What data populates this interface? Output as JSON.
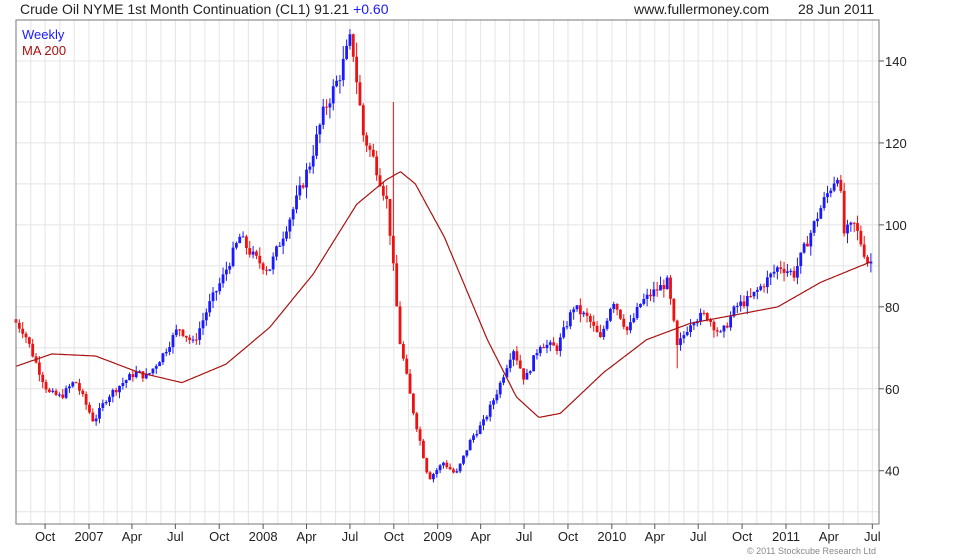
{
  "header": {
    "title": "Crude Oil NYME 1st Month Continuation (CL1)",
    "last": "91.21",
    "change": "+0.60",
    "site": "www.fullermoney.com",
    "date": "28 Jun 2011"
  },
  "legend": {
    "weekly": "Weekly",
    "ma": "MA 200",
    "weekly_color": "#1a1aff",
    "ma_color": "#aa1111"
  },
  "copyright": "© 2011 Stockcube Research Ltd",
  "chart_data": {
    "type": "candlestick",
    "series": [
      {
        "name": "Weekly"
      },
      {
        "name": "MA 200"
      }
    ],
    "colors": {
      "up": "#1a1aff",
      "down": "#ee1111",
      "ma": "#aa1111"
    },
    "x_range": [
      "2006-08-01",
      "2011-07-15"
    ],
    "ylim": [
      27,
      150
    ],
    "y_ticks": [
      40,
      60,
      80,
      100,
      120,
      140
    ],
    "x_ticks": [
      {
        "label": "Oct",
        "date": "2006-10-01"
      },
      {
        "label": "2007",
        "date": "2007-01-01"
      },
      {
        "label": "Apr",
        "date": "2007-04-01"
      },
      {
        "label": "Jul",
        "date": "2007-07-01"
      },
      {
        "label": "Oct",
        "date": "2007-10-01"
      },
      {
        "label": "2008",
        "date": "2008-01-01"
      },
      {
        "label": "Apr",
        "date": "2008-04-01"
      },
      {
        "label": "Jul",
        "date": "2008-07-01"
      },
      {
        "label": "Oct",
        "date": "2008-10-01"
      },
      {
        "label": "2009",
        "date": "2009-01-01"
      },
      {
        "label": "Apr",
        "date": "2009-04-01"
      },
      {
        "label": "Jul",
        "date": "2009-07-01"
      },
      {
        "label": "Oct",
        "date": "2009-10-01"
      },
      {
        "label": "2010",
        "date": "2010-01-01"
      },
      {
        "label": "Apr",
        "date": "2010-04-01"
      },
      {
        "label": "Jul",
        "date": "2010-07-01"
      },
      {
        "label": "Oct",
        "date": "2010-10-01"
      },
      {
        "label": "2011",
        "date": "2011-01-01"
      },
      {
        "label": "Apr",
        "date": "2011-04-01"
      },
      {
        "label": "Jul",
        "date": "2011-07-01"
      }
    ],
    "price_path": [
      [
        "2006-08-01",
        77
      ],
      [
        "2006-08-25",
        74
      ],
      [
        "2006-09-20",
        66
      ],
      [
        "2006-10-15",
        59
      ],
      [
        "2006-11-10",
        58
      ],
      [
        "2006-12-10",
        62
      ],
      [
        "2007-01-18",
        52
      ],
      [
        "2007-02-15",
        58
      ],
      [
        "2007-03-15",
        61
      ],
      [
        "2007-04-15",
        64
      ],
      [
        "2007-05-10",
        63
      ],
      [
        "2007-06-10",
        68
      ],
      [
        "2007-07-15",
        75
      ],
      [
        "2007-08-15",
        71
      ],
      [
        "2007-09-15",
        80
      ],
      [
        "2007-10-15",
        87
      ],
      [
        "2007-11-20",
        97
      ],
      [
        "2007-12-20",
        92
      ],
      [
        "2008-01-20",
        89
      ],
      [
        "2008-02-20",
        98
      ],
      [
        "2008-03-15",
        105
      ],
      [
        "2008-04-15",
        115
      ],
      [
        "2008-05-15",
        128
      ],
      [
        "2008-06-15",
        136
      ],
      [
        "2008-07-11",
        146
      ],
      [
        "2008-08-05",
        122
      ],
      [
        "2008-08-30",
        115
      ],
      [
        "2008-09-25",
        105
      ],
      [
        "2008-10-20",
        72
      ],
      [
        "2008-11-15",
        56
      ],
      [
        "2008-12-20",
        38
      ],
      [
        "2009-01-20",
        42
      ],
      [
        "2009-02-15",
        39
      ],
      [
        "2009-03-20",
        48
      ],
      [
        "2009-04-15",
        52
      ],
      [
        "2009-05-15",
        60
      ],
      [
        "2009-06-15",
        70
      ],
      [
        "2009-07-10",
        62
      ],
      [
        "2009-08-10",
        71
      ],
      [
        "2009-09-15",
        70
      ],
      [
        "2009-10-20",
        80
      ],
      [
        "2009-11-20",
        77
      ],
      [
        "2009-12-15",
        72
      ],
      [
        "2010-01-10",
        82
      ],
      [
        "2010-02-10",
        74
      ],
      [
        "2010-03-10",
        81
      ],
      [
        "2010-04-10",
        84
      ],
      [
        "2010-05-05",
        86
      ],
      [
        "2010-05-25",
        70
      ],
      [
        "2010-06-25",
        77
      ],
      [
        "2010-07-25",
        78
      ],
      [
        "2010-08-25",
        73
      ],
      [
        "2010-09-25",
        80
      ],
      [
        "2010-10-25",
        82
      ],
      [
        "2010-11-25",
        86
      ],
      [
        "2010-12-25",
        90
      ],
      [
        "2011-01-25",
        88
      ],
      [
        "2011-02-25",
        97
      ],
      [
        "2011-03-25",
        105
      ],
      [
        "2011-04-28",
        113
      ],
      [
        "2011-05-10",
        98
      ],
      [
        "2011-06-01",
        100
      ],
      [
        "2011-06-28",
        91
      ]
    ],
    "ma_path": [
      [
        "2006-08-01",
        65.5
      ],
      [
        "2006-10-15",
        68.5
      ],
      [
        "2007-01-15",
        68
      ],
      [
        "2007-04-15",
        64
      ],
      [
        "2007-07-15",
        61.5
      ],
      [
        "2007-10-15",
        66
      ],
      [
        "2008-01-15",
        75
      ],
      [
        "2008-04-15",
        88
      ],
      [
        "2008-07-15",
        105
      ],
      [
        "2008-09-15",
        111
      ],
      [
        "2008-10-15",
        113
      ],
      [
        "2008-11-15",
        110
      ],
      [
        "2009-01-15",
        97
      ],
      [
        "2009-04-15",
        72
      ],
      [
        "2009-06-15",
        58
      ],
      [
        "2009-08-01",
        53
      ],
      [
        "2009-09-15",
        54
      ],
      [
        "2009-12-15",
        64
      ],
      [
        "2010-03-15",
        72
      ],
      [
        "2010-06-15",
        76
      ],
      [
        "2010-09-15",
        78
      ],
      [
        "2010-12-15",
        80
      ],
      [
        "2011-03-15",
        86
      ],
      [
        "2011-06-28",
        91
      ]
    ],
    "spikes": [
      {
        "date": "2008-10-03",
        "high": 130
      },
      {
        "date": "2010-05-20",
        "low": 65
      }
    ]
  }
}
